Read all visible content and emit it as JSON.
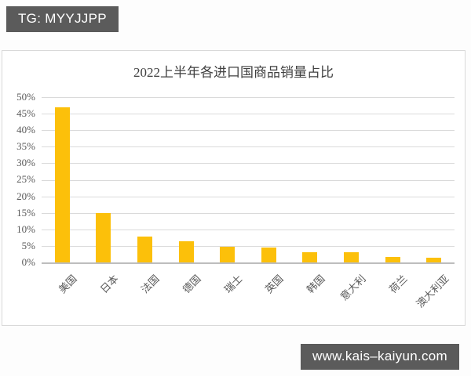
{
  "badges": {
    "tg": "TG: MYYJJPP",
    "watermark": "www.kais–kaiyun.com"
  },
  "chart_data": {
    "type": "bar",
    "title": "2022上半年各进口国商品销量占比",
    "categories": [
      "美国",
      "日本",
      "法国",
      "德国",
      "瑞士",
      "英国",
      "韩国",
      "意大利",
      "荷兰",
      "澳大利亚"
    ],
    "values": [
      47,
      15,
      7.9,
      6.3,
      4.7,
      4.4,
      3.2,
      3,
      1.6,
      1.4
    ],
    "xlabel": "",
    "ylabel": "",
    "ylim": [
      0,
      50
    ],
    "y_tick_step": 5,
    "y_ticks": [
      "0%",
      "5%",
      "10%",
      "15%",
      "20%",
      "25%",
      "30%",
      "35%",
      "40%",
      "45%",
      "50%"
    ],
    "grid": true,
    "legend": false,
    "bar_color": "#FCC00A",
    "x_label_rotation_deg": 45
  },
  "colors": {
    "badge_bg": "#5B5B5B",
    "badge_text": "#FFFFFF",
    "title_text": "#404040",
    "axis_text": "#595959",
    "gridline": "#DADADA",
    "axis_line": "#BDBDBD",
    "card_border": "#D9D9D9",
    "card_bg": "#FFFFFF",
    "page_bg": "#FDFDFD"
  }
}
